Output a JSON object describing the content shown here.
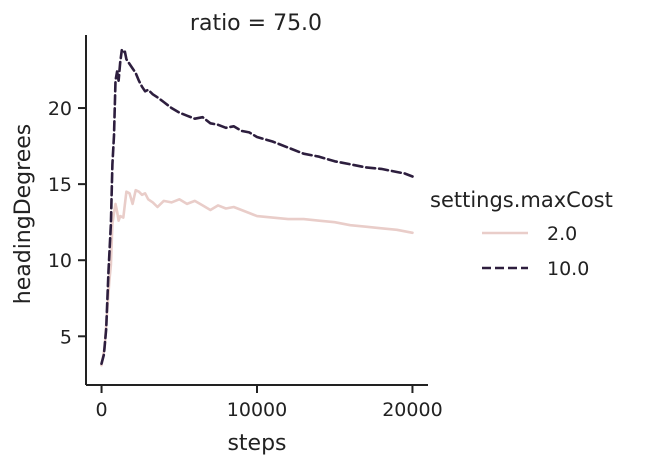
{
  "chart_data": {
    "type": "line",
    "title": "ratio = 75.0",
    "xlabel": "steps",
    "ylabel": "headingDegrees",
    "xlim": [
      -1000,
      21000
    ],
    "ylim": [
      1.8,
      24.8
    ],
    "xticks": [
      0,
      10000,
      20000
    ],
    "xtick_labels": [
      "0",
      "10000",
      "20000"
    ],
    "yticks": [
      5,
      10,
      15,
      20
    ],
    "ytick_labels": [
      "5",
      "10",
      "15",
      "20"
    ],
    "grid": false,
    "legend": {
      "title": "settings.maxCost",
      "placement": "right",
      "entries": [
        "2.0",
        "10.0"
      ]
    },
    "series": [
      {
        "name": "2.0",
        "color": "#e9cdc9",
        "dash": "solid",
        "x": [
          0,
          200,
          350,
          500,
          600,
          700,
          800,
          900,
          1000,
          1100,
          1200,
          1400,
          1600,
          1800,
          2000,
          2200,
          2400,
          2600,
          2800,
          3000,
          3300,
          3600,
          4000,
          4500,
          5000,
          5500,
          6000,
          6500,
          7000,
          7500,
          8000,
          8500,
          9000,
          9500,
          10000,
          11000,
          12000,
          13000,
          14000,
          15000,
          16000,
          17000,
          18000,
          19000,
          19500,
          20000
        ],
        "values": [
          3.1,
          4.3,
          6.5,
          8.6,
          9.7,
          12.4,
          13.1,
          13.7,
          13.2,
          12.6,
          12.9,
          12.8,
          14.5,
          14.4,
          13.7,
          14.6,
          14.5,
          14.3,
          14.4,
          14.0,
          13.8,
          13.5,
          13.9,
          13.8,
          14.0,
          13.7,
          13.9,
          13.6,
          13.3,
          13.6,
          13.4,
          13.5,
          13.3,
          13.1,
          12.9,
          12.8,
          12.7,
          12.7,
          12.6,
          12.5,
          12.3,
          12.2,
          12.1,
          12.0,
          11.9,
          11.8
        ]
      },
      {
        "name": "10.0",
        "color": "#2d1e3e",
        "dash": "dashed",
        "x": [
          0,
          150,
          300,
          450,
          600,
          700,
          800,
          900,
          1000,
          1100,
          1200,
          1300,
          1400,
          1500,
          1600,
          1800,
          2000,
          2200,
          2400,
          2600,
          2800,
          3000,
          3300,
          3600,
          4000,
          4500,
          5000,
          5500,
          6000,
          6500,
          7000,
          7500,
          8000,
          8500,
          9000,
          9500,
          10000,
          11000,
          12000,
          13000,
          14000,
          15000,
          16000,
          17000,
          18000,
          19000,
          19500,
          20000
        ],
        "values": [
          3.2,
          3.8,
          5.5,
          9.3,
          12.4,
          16.3,
          18.2,
          21.8,
          22.4,
          21.8,
          23.0,
          23.8,
          23.6,
          23.7,
          23.2,
          22.9,
          22.6,
          22.3,
          21.8,
          21.4,
          21.1,
          21.2,
          20.9,
          20.7,
          20.4,
          20.0,
          19.7,
          19.5,
          19.3,
          19.4,
          19.0,
          18.9,
          18.7,
          18.8,
          18.5,
          18.4,
          18.1,
          17.8,
          17.4,
          17.0,
          16.8,
          16.5,
          16.3,
          16.1,
          16.0,
          15.8,
          15.7,
          15.5
        ]
      }
    ]
  }
}
